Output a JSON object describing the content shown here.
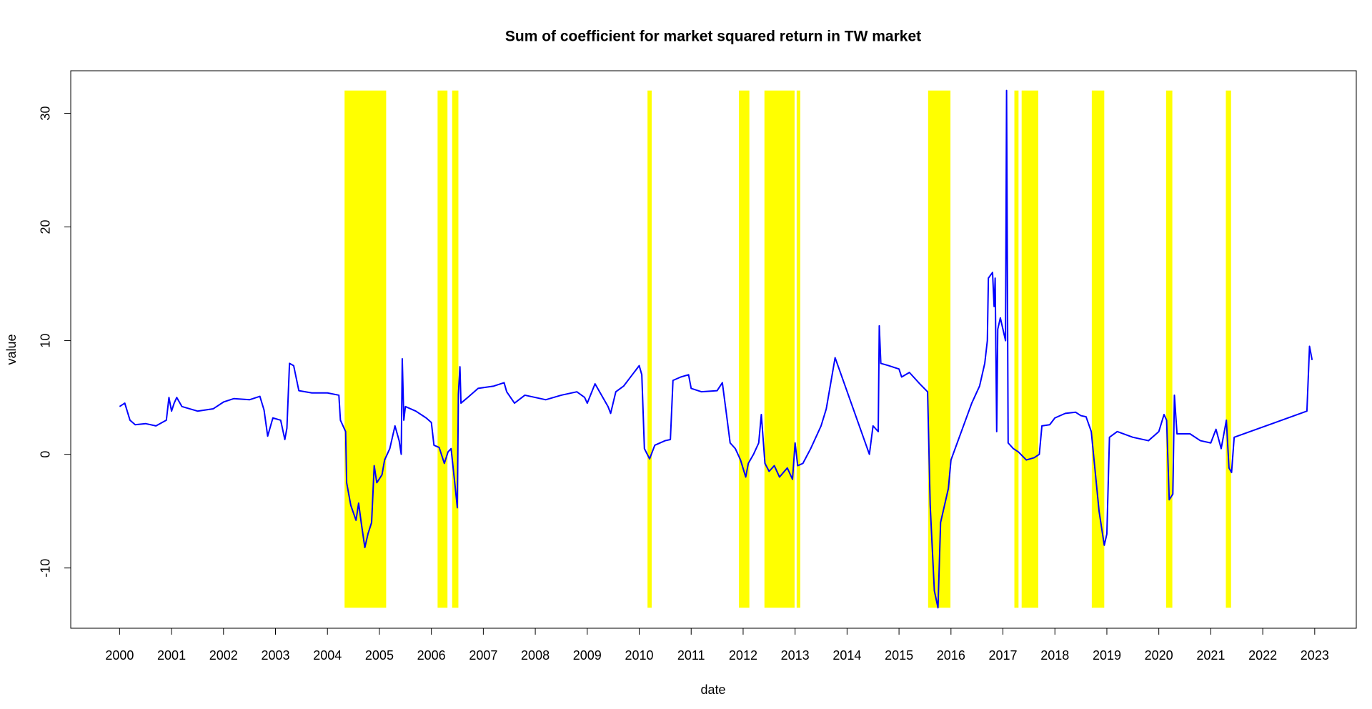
{
  "chart_data": {
    "type": "line",
    "title": "Sum of coefficient for market squared return in TW market",
    "xlabel": "date",
    "ylabel": "value",
    "color": "#0000ff",
    "x": [
      2000.0,
      2000.1,
      2000.2,
      2000.3,
      2000.5,
      2000.7,
      2000.9,
      2000.95,
      2001.0,
      2001.05,
      2001.1,
      2001.2,
      2001.5,
      2001.8,
      2002.0,
      2002.2,
      2002.5,
      2002.7,
      2002.78,
      2002.85,
      2002.95,
      2003.1,
      2003.18,
      2003.22,
      2003.27,
      2003.35,
      2003.45,
      2003.7,
      2004.0,
      2004.22,
      2004.25,
      2004.35,
      2004.37,
      2004.45,
      2004.55,
      2004.6,
      2004.65,
      2004.72,
      2004.78,
      2004.85,
      2004.9,
      2004.95,
      2005.05,
      2005.1,
      2005.2,
      2005.3,
      2005.38,
      2005.42,
      2005.44,
      2005.47,
      2005.5,
      2005.7,
      2005.9,
      2006.0,
      2006.05,
      2006.15,
      2006.25,
      2006.32,
      2006.38,
      2006.45,
      2006.5,
      2006.52,
      2006.55,
      2006.57,
      2006.7,
      2006.9,
      2007.2,
      2007.4,
      2007.45,
      2007.6,
      2007.8,
      2008.2,
      2008.5,
      2008.8,
      2008.95,
      2009.0,
      2009.15,
      2009.4,
      2009.45,
      2009.55,
      2009.7,
      2009.8,
      2010.0,
      2010.05,
      2010.1,
      2010.2,
      2010.3,
      2010.5,
      2010.6,
      2010.65,
      2010.8,
      2010.95,
      2011.0,
      2011.2,
      2011.5,
      2011.6,
      2011.68,
      2011.75,
      2011.85,
      2011.95,
      2012.05,
      2012.1,
      2012.2,
      2012.3,
      2012.35,
      2012.42,
      2012.5,
      2012.6,
      2012.7,
      2012.85,
      2012.95,
      2013.0,
      2013.05,
      2013.15,
      2013.3,
      2013.5,
      2013.6,
      2013.77,
      2014.43,
      2014.5,
      2014.6,
      2014.62,
      2014.65,
      2014.8,
      2015.0,
      2015.05,
      2015.2,
      2015.4,
      2015.55,
      2015.6,
      2015.68,
      2015.75,
      2015.8,
      2015.95,
      2016.0,
      2016.2,
      2016.4,
      2016.55,
      2016.65,
      2016.7,
      2016.72,
      2016.8,
      2016.83,
      2016.85,
      2016.88,
      2016.9,
      2016.95,
      2017.05,
      2017.07,
      2017.1,
      2017.2,
      2017.3,
      2017.45,
      2017.6,
      2017.7,
      2017.75,
      2017.9,
      2018.0,
      2018.2,
      2018.4,
      2018.5,
      2018.6,
      2018.7,
      2018.85,
      2018.95,
      2019.0,
      2019.05,
      2019.2,
      2019.5,
      2019.8,
      2020.0,
      2020.1,
      2020.15,
      2020.2,
      2020.27,
      2020.3,
      2020.35,
      2020.6,
      2020.8,
      2021.0,
      2021.1,
      2021.2,
      2021.3,
      2021.35,
      2021.4,
      2021.45,
      2022.85,
      2022.9,
      2022.95
    ],
    "values": [
      4.2,
      4.5,
      3.0,
      2.6,
      2.7,
      2.5,
      3.0,
      5.0,
      3.8,
      4.5,
      5.0,
      4.2,
      3.8,
      4.0,
      4.6,
      4.9,
      4.8,
      5.1,
      3.9,
      1.6,
      3.2,
      3.0,
      1.3,
      2.3,
      8.0,
      7.8,
      5.6,
      5.4,
      5.4,
      5.2,
      3.0,
      2.0,
      -2.5,
      -4.5,
      -5.8,
      -4.3,
      -6.0,
      -8.2,
      -7.0,
      -6.0,
      -1.0,
      -2.5,
      -1.8,
      -0.5,
      0.5,
      2.5,
      1.2,
      0.0,
      8.4,
      3.0,
      4.2,
      3.8,
      3.2,
      2.8,
      0.8,
      0.6,
      -0.8,
      0.2,
      0.5,
      -2.5,
      -4.7,
      5.3,
      7.7,
      4.5,
      5.0,
      5.8,
      6.0,
      6.3,
      5.5,
      4.5,
      5.2,
      4.8,
      5.2,
      5.5,
      5.0,
      4.5,
      6.2,
      4.2,
      3.6,
      5.5,
      6.0,
      6.6,
      7.8,
      7.0,
      0.5,
      -0.4,
      0.8,
      1.2,
      1.3,
      6.5,
      6.8,
      7.0,
      5.8,
      5.5,
      5.6,
      6.3,
      3.5,
      1.0,
      0.5,
      -0.5,
      -2.0,
      -0.8,
      0.0,
      1.0,
      3.5,
      -0.8,
      -1.5,
      -1.0,
      -2.0,
      -1.2,
      -2.2,
      1.0,
      -1.0,
      -0.8,
      0.5,
      2.5,
      4.0,
      8.5,
      0.0,
      2.5,
      2.0,
      11.3,
      8.0,
      7.8,
      7.5,
      6.8,
      7.2,
      6.2,
      5.5,
      -4.5,
      -12.0,
      -13.5,
      -6.0,
      -3.0,
      -0.5,
      2.0,
      4.5,
      6.0,
      8.0,
      10.0,
      15.5,
      16.0,
      13.0,
      15.5,
      2.0,
      11.0,
      12.0,
      10.0,
      32.0,
      1.0,
      0.5,
      0.2,
      -0.5,
      -0.3,
      0.0,
      2.5,
      2.6,
      3.2,
      3.6,
      3.7,
      3.4,
      3.3,
      2.0,
      -5.0,
      -8.0,
      -7.0,
      1.5,
      2.0,
      1.5,
      1.2,
      2.0,
      3.5,
      3.0,
      -4.0,
      -3.5,
      5.2,
      1.8,
      1.8,
      1.2,
      1.0,
      2.2,
      0.5,
      3.0,
      -1.2,
      -1.6,
      1.5,
      3.8,
      9.5,
      8.3
    ],
    "highlight_color": "#ffff00",
    "highlight_ylim": [
      -13.5,
      32
    ],
    "highlight_regions": [
      {
        "start": 2004.33,
        "end": 2005.13
      },
      {
        "start": 2006.12,
        "end": 2006.31
      },
      {
        "start": 2006.4,
        "end": 2006.52
      },
      {
        "start": 2010.16,
        "end": 2010.24
      },
      {
        "start": 2011.92,
        "end": 2012.12
      },
      {
        "start": 2012.41,
        "end": 2012.99
      },
      {
        "start": 2013.03,
        "end": 2013.1
      },
      {
        "start": 2015.56,
        "end": 2015.99
      },
      {
        "start": 2017.22,
        "end": 2017.3
      },
      {
        "start": 2017.36,
        "end": 2017.68
      },
      {
        "start": 2018.71,
        "end": 2018.95
      },
      {
        "start": 2020.14,
        "end": 2020.26
      },
      {
        "start": 2021.29,
        "end": 2021.39
      }
    ],
    "xlim": [
      1999.06,
      2023.8
    ],
    "ylim": [
      -15.3,
      33.74
    ],
    "xticks": [
      2000,
      2001,
      2002,
      2003,
      2004,
      2005,
      2006,
      2007,
      2008,
      2009,
      2010,
      2011,
      2012,
      2013,
      2014,
      2015,
      2016,
      2017,
      2018,
      2019,
      2020,
      2021,
      2022,
      2023
    ],
    "yticks": [
      -10,
      0,
      10,
      20,
      30
    ],
    "grid": false
  }
}
